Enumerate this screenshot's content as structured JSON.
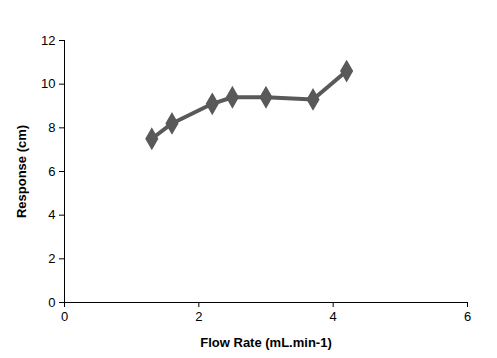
{
  "chart_data": {
    "type": "line",
    "x_label": "Flow Rate (mL.min-1)",
    "y_label": "Response (cm)",
    "x": [
      1.3,
      1.6,
      2.2,
      2.5,
      3.0,
      3.7,
      4.2
    ],
    "values": [
      7.5,
      8.2,
      9.1,
      9.4,
      9.4,
      9.3,
      10.6
    ],
    "color": "#595959",
    "marker": "diamond",
    "xlim": [
      0,
      6
    ],
    "xticks": [
      0,
      2,
      4,
      6
    ],
    "ylim": [
      0,
      12
    ],
    "yticks": [
      0,
      2,
      4,
      6,
      8,
      10,
      12
    ],
    "grid": false
  }
}
